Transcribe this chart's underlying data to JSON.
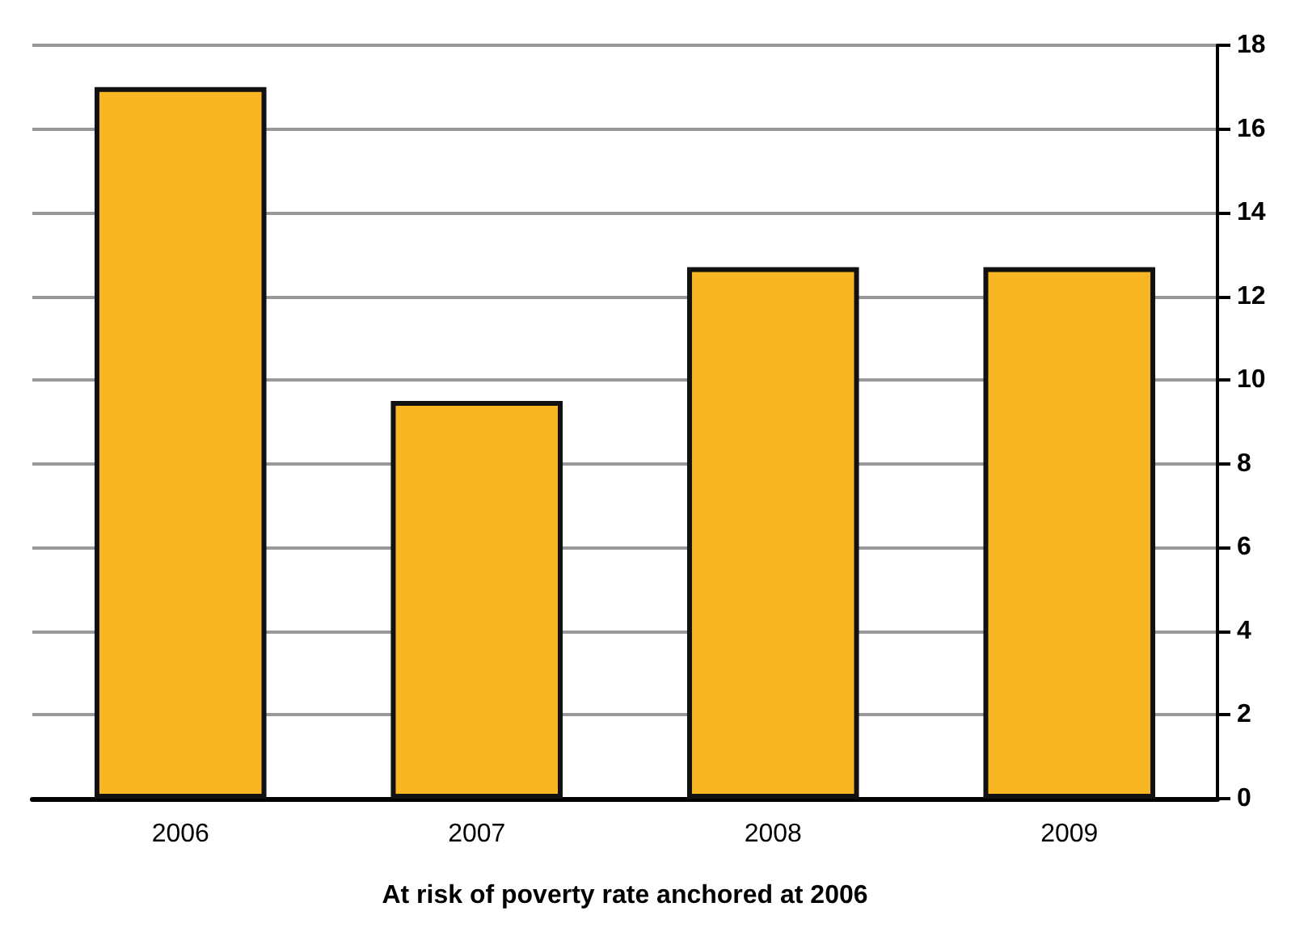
{
  "chart_data": {
    "type": "bar",
    "xlabel": "At risk of poverty rate anchored at 2006",
    "categories": [
      "2006",
      "2007",
      "2008",
      "2009"
    ],
    "values": [
      17,
      9.5,
      12.7,
      12.7
    ],
    "color": "#f8b722",
    "ylim": [
      0,
      18
    ],
    "yticks": [
      0,
      2,
      4,
      6,
      8,
      10,
      12,
      14,
      16,
      18
    ],
    "grid": "y"
  }
}
